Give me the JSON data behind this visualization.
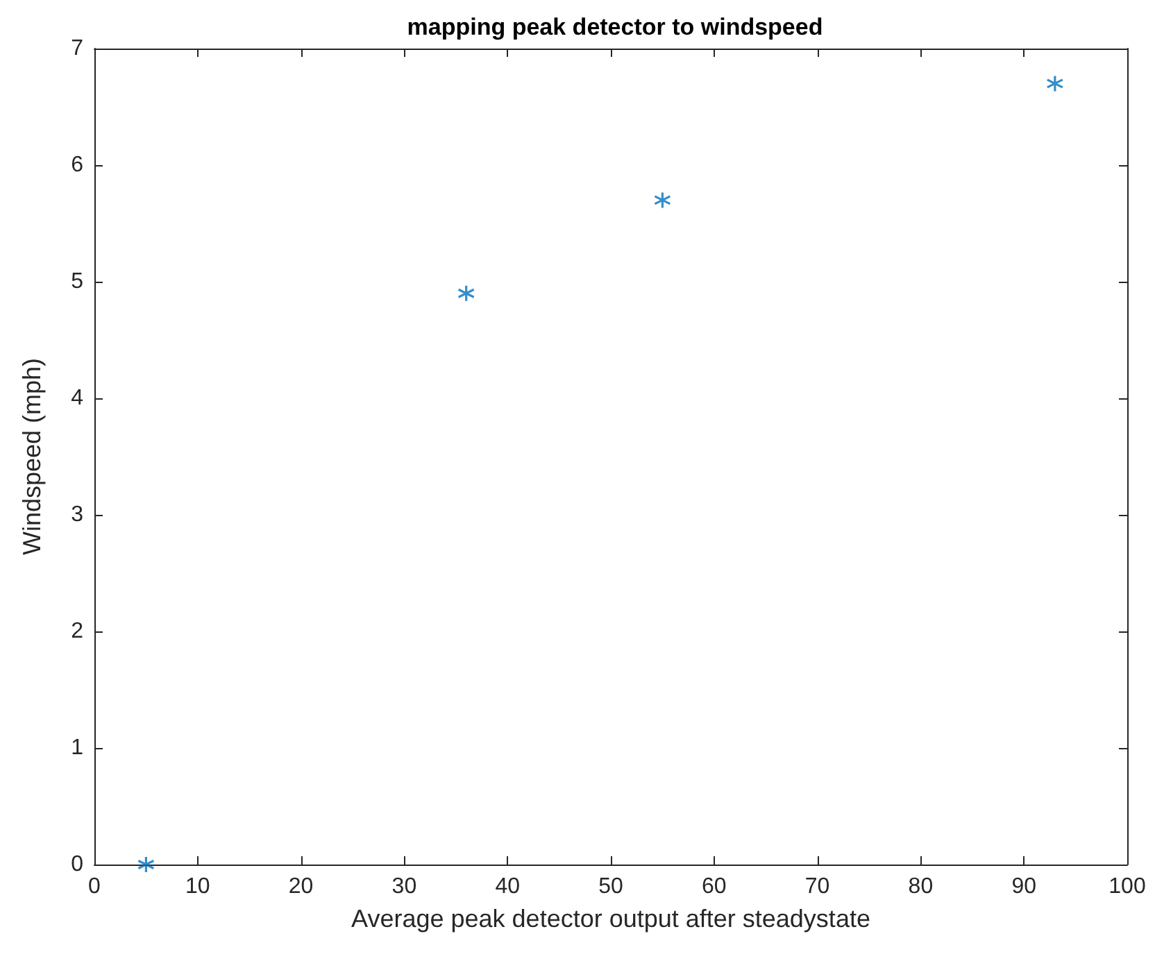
{
  "chart_data": {
    "type": "scatter",
    "title": "mapping peak detector to windspeed",
    "xlabel": "Average peak detector output after steadystate",
    "ylabel": "Windspeed (mph)",
    "x": [
      5,
      36,
      55,
      93
    ],
    "series": [
      {
        "color": "#0072bd",
        "values": [
          0,
          4.9,
          5.7,
          6.7
        ]
      }
    ],
    "xlim": [
      0,
      100
    ],
    "xticks": [
      0,
      10,
      20,
      30,
      40,
      50,
      60,
      70,
      80,
      90,
      100
    ],
    "ylim": [
      0,
      7
    ],
    "yticks": [
      0,
      1,
      2,
      3,
      4,
      5,
      6,
      7
    ],
    "marker": "cross",
    "grid": false
  }
}
